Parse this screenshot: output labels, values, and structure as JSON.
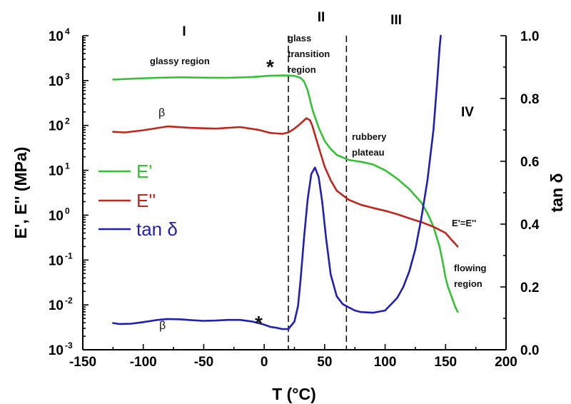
{
  "chart_data": {
    "type": "line",
    "x_axis": {
      "label": "T (°C)",
      "range": [
        -150,
        200
      ],
      "ticks": [
        -150,
        -100,
        -50,
        0,
        50,
        100,
        150,
        200
      ],
      "tick_labels": [
        "-150",
        "-100",
        "-50",
        "0",
        "50",
        "100",
        "150",
        "200"
      ]
    },
    "y_left": {
      "label": "E', E'' (MPa)",
      "scale": "log",
      "range": [
        0.001,
        10000
      ],
      "tick_exponents": [
        -3,
        -2,
        -1,
        0,
        1,
        2,
        3,
        4
      ],
      "tick_base": "10"
    },
    "y_right": {
      "label": "tan δ",
      "scale": "linear",
      "range": [
        0.0,
        1.0
      ],
      "ticks": [
        0.0,
        0.2,
        0.4,
        0.6,
        0.8,
        1.0
      ],
      "tick_labels": [
        "0.0",
        "0.2",
        "0.4",
        "0.6",
        "0.8",
        "1.0"
      ]
    },
    "series": [
      {
        "name": "E'",
        "axis": "left",
        "color": "#33c233",
        "x": [
          -125,
          -110,
          -90,
          -70,
          -50,
          -30,
          -10,
          5,
          15,
          20,
          25,
          30,
          33,
          36,
          40,
          45,
          50,
          55,
          60,
          70,
          80,
          90,
          100,
          110,
          120,
          130,
          135,
          140,
          145,
          148,
          150,
          152,
          155,
          158,
          160
        ],
        "y": [
          1050,
          1100,
          1150,
          1180,
          1160,
          1150,
          1200,
          1280,
          1300,
          1300,
          1270,
          1150,
          950,
          600,
          220,
          90,
          45,
          30,
          22,
          17,
          15.5,
          13.5,
          10,
          6.5,
          3.8,
          1.9,
          1.1,
          0.55,
          0.2,
          0.08,
          0.04,
          0.025,
          0.015,
          0.009,
          0.007
        ]
      },
      {
        "name": "E''",
        "axis": "left",
        "color": "#c0261c",
        "x": [
          -125,
          -115,
          -100,
          -80,
          -60,
          -40,
          -20,
          -5,
          5,
          15,
          20,
          25,
          30,
          35,
          38,
          40,
          43,
          47,
          50,
          55,
          60,
          70,
          80,
          90,
          100,
          110,
          120,
          130,
          140,
          150,
          155,
          160
        ],
        "y": [
          72,
          70,
          78,
          95,
          88,
          85,
          92,
          80,
          68,
          65,
          70,
          85,
          110,
          145,
          130,
          95,
          50,
          22,
          12,
          6,
          3.5,
          2.2,
          1.7,
          1.45,
          1.25,
          1.05,
          0.85,
          0.7,
          0.55,
          0.4,
          0.28,
          0.2
        ]
      },
      {
        "name": "tan δ",
        "axis": "right",
        "color": "#1f1fb8",
        "x": [
          -125,
          -120,
          -110,
          -100,
          -90,
          -80,
          -70,
          -60,
          -50,
          -40,
          -30,
          -20,
          -10,
          0,
          5,
          10,
          15,
          20,
          25,
          28,
          30,
          33,
          36,
          39,
          42,
          45,
          48,
          51,
          55,
          60,
          65,
          70,
          75,
          80,
          90,
          100,
          110,
          115,
          120,
          125,
          130,
          135,
          140,
          143,
          145,
          146
        ],
        "y": [
          0.085,
          0.082,
          0.083,
          0.088,
          0.094,
          0.098,
          0.097,
          0.094,
          0.092,
          0.093,
          0.095,
          0.095,
          0.09,
          0.08,
          0.073,
          0.07,
          0.066,
          0.066,
          0.09,
          0.14,
          0.22,
          0.36,
          0.48,
          0.56,
          0.58,
          0.55,
          0.47,
          0.36,
          0.24,
          0.17,
          0.145,
          0.135,
          0.125,
          0.12,
          0.118,
          0.125,
          0.165,
          0.2,
          0.25,
          0.32,
          0.42,
          0.54,
          0.7,
          0.85,
          0.96,
          1.0
        ]
      }
    ],
    "legend": {
      "placement": "left-middle",
      "entries": [
        "E'",
        "E''",
        "tan δ"
      ]
    },
    "dividers": [
      20,
      68
    ],
    "region_labels": [
      "I",
      "II",
      "III",
      "IV"
    ],
    "annotations": {
      "glassy": "glassy region",
      "glass_transition_1": "glass",
      "glass_transition_2": "transition",
      "glass_transition_3": "region",
      "rubbery_1": "rubbery",
      "rubbery_2": "plateau",
      "crossover": "E'=E''",
      "flowing_1": "flowing",
      "flowing_2": "region",
      "beta_upper": "β",
      "beta_lower": "β",
      "star_upper": "*",
      "star_lower": "*"
    }
  }
}
